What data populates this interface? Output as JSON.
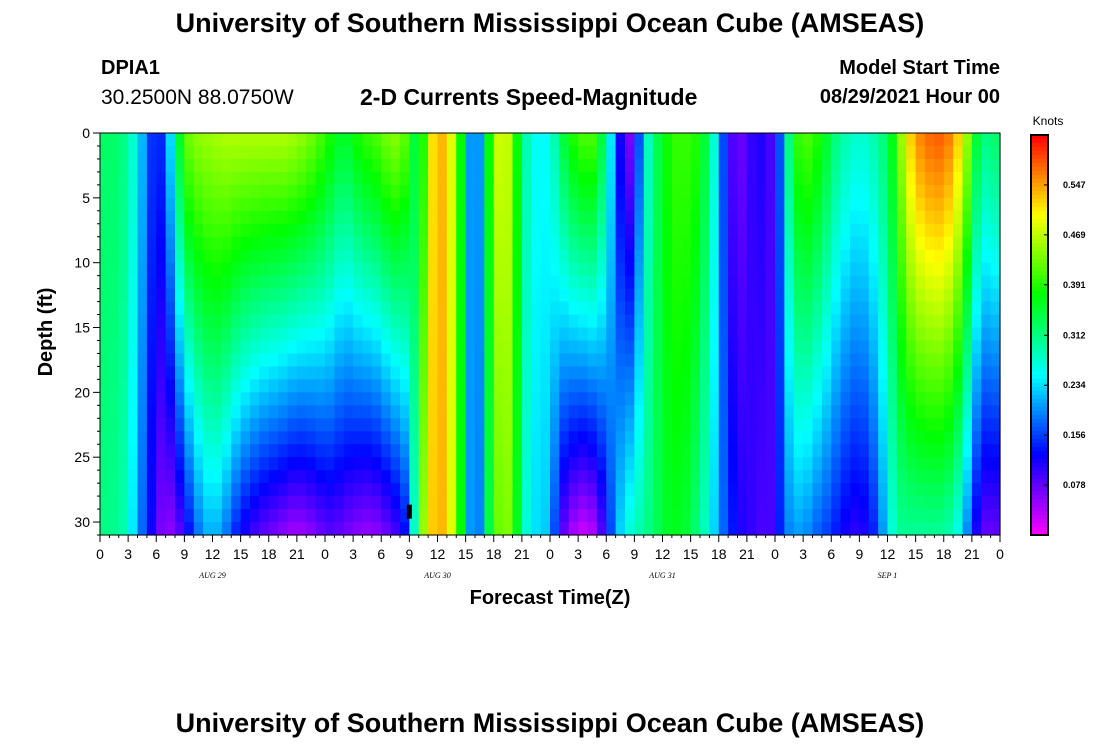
{
  "header": {
    "top_title": "University of Southern Mississippi Ocean Cube (AMSEAS)",
    "bottom_title": "University of Southern Mississippi Ocean Cube (AMSEAS)",
    "station": "DPIA1",
    "coordinates": "30.2500N  88.0750W",
    "model_start_label": "Model Start Time",
    "model_start_value": "08/29/2021 Hour 00"
  },
  "chart_data": {
    "type": "heatmap",
    "title": "2-D Currents Speed-Magnitude",
    "xlabel": "Forecast Time(Z)",
    "ylabel": "Depth (ft)",
    "x_tick_labels": [
      "0",
      "3",
      "6",
      "9",
      "12",
      "15",
      "18",
      "21",
      "0",
      "3",
      "6",
      "9",
      "12",
      "15",
      "18",
      "21",
      "0",
      "3",
      "6",
      "9",
      "12",
      "15",
      "18",
      "21",
      "0",
      "3",
      "6",
      "9",
      "12",
      "15",
      "18",
      "21",
      "0"
    ],
    "date_labels": [
      {
        "text": "AUG 29",
        "hour": 12
      },
      {
        "text": "AUG 30",
        "hour": 36
      },
      {
        "text": "AUG 31",
        "hour": 60
      },
      {
        "text": "SEP 1",
        "hour": 84
      }
    ],
    "x_range_hours": [
      0,
      96
    ],
    "y_ticks": [
      0,
      5,
      10,
      15,
      20,
      25,
      30
    ],
    "ylim": [
      0,
      31
    ],
    "colorbar": {
      "label": "Knots",
      "ticks": [
        0.547,
        0.469,
        0.391,
        0.312,
        0.234,
        0.156,
        0.078
      ],
      "range": [
        0.0,
        0.625
      ]
    },
    "profile": {
      "hours": [
        0,
        1,
        2,
        3,
        4,
        5,
        6,
        7,
        8,
        9,
        10,
        11,
        12,
        13,
        14,
        15,
        16,
        17,
        18,
        19,
        20,
        21,
        22,
        23,
        24,
        25,
        26,
        27,
        28,
        29,
        30,
        31,
        32,
        33,
        34,
        35,
        36,
        37,
        38,
        39,
        40,
        41,
        42,
        43,
        44,
        45,
        46,
        47,
        48,
        49,
        50,
        51,
        52,
        53,
        54,
        55,
        56,
        57,
        58,
        59,
        60,
        61,
        62,
        63,
        64,
        65,
        66,
        67,
        68,
        69,
        70,
        71,
        72,
        73,
        74,
        75,
        76,
        77,
        78,
        79,
        80,
        81,
        82,
        83,
        84,
        85,
        86,
        87,
        88,
        89,
        90,
        91,
        92,
        93,
        94,
        95,
        96
      ],
      "surface": [
        0.32,
        0.33,
        0.32,
        0.3,
        0.25,
        0.18,
        0.12,
        0.17,
        0.3,
        0.42,
        0.44,
        0.45,
        0.45,
        0.46,
        0.46,
        0.46,
        0.46,
        0.46,
        0.46,
        0.46,
        0.46,
        0.45,
        0.44,
        0.42,
        0.4,
        0.37,
        0.35,
        0.37,
        0.4,
        0.4,
        0.42,
        0.44,
        0.44,
        0.4,
        0.3,
        0.48,
        0.55,
        0.52,
        0.45,
        0.3,
        0.1,
        0.3,
        0.45,
        0.5,
        0.44,
        0.32,
        0.26,
        0.25,
        0.26,
        0.32,
        0.38,
        0.4,
        0.42,
        0.4,
        0.3,
        0.18,
        0.05,
        0.08,
        0.25,
        0.32,
        0.36,
        0.4,
        0.4,
        0.4,
        0.38,
        0.32,
        0.22,
        0.1,
        0.07,
        0.08,
        0.12,
        0.1,
        0.08,
        0.25,
        0.38,
        0.42,
        0.4,
        0.38,
        0.33,
        0.3,
        0.28,
        0.27,
        0.28,
        0.3,
        0.33,
        0.4,
        0.5,
        0.55,
        0.57,
        0.58,
        0.58,
        0.55,
        0.5,
        0.4,
        0.3,
        0.33,
        0.32
      ],
      "bottom": [
        0.31,
        0.31,
        0.3,
        0.28,
        0.2,
        0.15,
        0.08,
        0.05,
        0.06,
        0.1,
        0.16,
        0.2,
        0.22,
        0.2,
        0.16,
        0.12,
        0.1,
        0.08,
        0.07,
        0.06,
        0.05,
        0.04,
        0.05,
        0.06,
        0.08,
        0.08,
        0.07,
        0.06,
        0.05,
        0.05,
        0.06,
        0.08,
        0.1,
        0.15,
        0.4,
        0.5,
        0.55,
        0.52,
        0.45,
        0.3,
        0.1,
        0.28,
        0.4,
        0.45,
        0.42,
        0.3,
        0.24,
        0.23,
        0.22,
        0.1,
        0.05,
        0.03,
        0.02,
        0.05,
        0.12,
        0.2,
        0.26,
        0.28,
        0.3,
        0.32,
        0.35,
        0.36,
        0.36,
        0.34,
        0.3,
        0.26,
        0.2,
        0.15,
        0.12,
        0.1,
        0.1,
        0.08,
        0.1,
        0.18,
        0.2,
        0.2,
        0.18,
        0.16,
        0.15,
        0.12,
        0.11,
        0.1,
        0.12,
        0.16,
        0.24,
        0.3,
        0.3,
        0.3,
        0.3,
        0.3,
        0.3,
        0.28,
        0.24,
        0.14,
        0.08,
        0.07,
        0.08
      ]
    },
    "annotation_marker": {
      "hour": 33,
      "depth": 29.2
    }
  }
}
